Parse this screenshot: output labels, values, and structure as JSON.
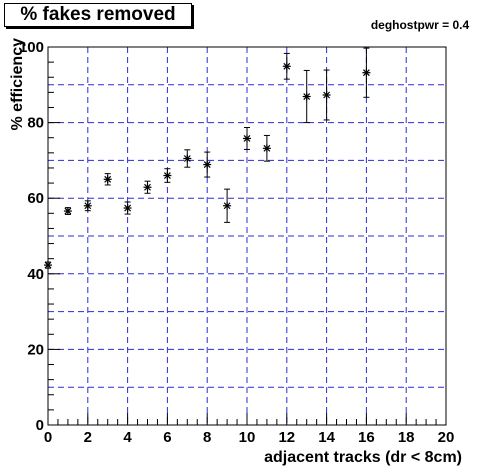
{
  "chart_data": {
    "type": "scatter",
    "title": "% fakes removed",
    "annotation": "deghostpwr = 0.4",
    "xlabel": "adjacent tracks (dr < 8cm)",
    "ylabel": "% efficiency",
    "xlim": [
      0,
      20
    ],
    "ylim": [
      0,
      100
    ],
    "x_ticks": [
      0,
      2,
      4,
      6,
      8,
      10,
      12,
      14,
      16,
      18,
      20
    ],
    "y_ticks": [
      0,
      20,
      40,
      60,
      80,
      100
    ],
    "grid": true,
    "grid_style": "dashed",
    "grid_color": "#2b2bd6",
    "marker": "star",
    "points": [
      {
        "x": 0,
        "y": 42.3,
        "err": 0.8
      },
      {
        "x": 1,
        "y": 56.6,
        "err": 0.9
      },
      {
        "x": 2,
        "y": 58.0,
        "err": 1.3
      },
      {
        "x": 3,
        "y": 65.0,
        "err": 1.5
      },
      {
        "x": 4,
        "y": 57.4,
        "err": 1.6
      },
      {
        "x": 5,
        "y": 62.9,
        "err": 1.6
      },
      {
        "x": 6,
        "y": 66.0,
        "err": 1.8
      },
      {
        "x": 7,
        "y": 70.5,
        "err": 2.3
      },
      {
        "x": 8,
        "y": 68.9,
        "err": 3.3
      },
      {
        "x": 9,
        "y": 58.0,
        "err": 4.4
      },
      {
        "x": 10,
        "y": 75.8,
        "err": 2.9
      },
      {
        "x": 11,
        "y": 73.2,
        "err": 3.4
      },
      {
        "x": 12,
        "y": 94.9,
        "err": 3.4
      },
      {
        "x": 13,
        "y": 86.9,
        "err": 6.9
      },
      {
        "x": 14,
        "y": 87.3,
        "err": 6.6
      },
      {
        "x": 16,
        "y": 93.2,
        "err": 6.5
      }
    ]
  }
}
